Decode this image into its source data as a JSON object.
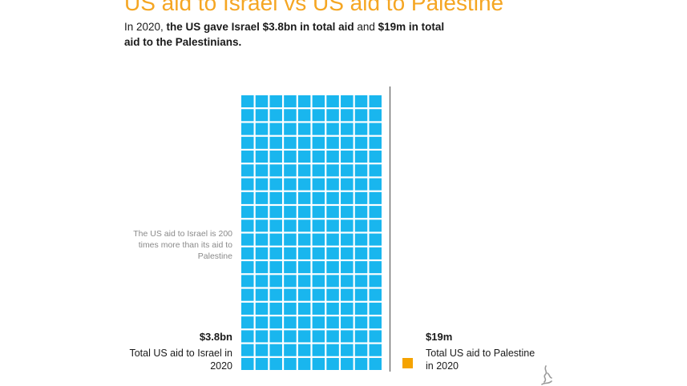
{
  "title": "US aid to Israel vs US aid to Palestine",
  "subtitle": {
    "prefix": "In 2020, ",
    "bold_1": "the US gave Israel $3.8bn in total aid",
    "joiner": " and ",
    "bold_2": "$19m in total aid to the Palestinians."
  },
  "note": "The US aid to Israel is 200 times more than its aid to Palestine",
  "colors": {
    "title": "#f5a623",
    "israel": "#19b6ee",
    "palestine": "#f5a300",
    "divider": "#4a4a4a",
    "note": "#8a8a8a",
    "text": "#1a1a1a"
  },
  "icons": {
    "brand_logo": "calligraphy-logo-icon"
  },
  "chart_data": {
    "type": "waffle",
    "unit_value_usd_m": 19,
    "series": [
      {
        "amount_label": "$3.8bn",
        "label": "Total US aid to Israel in 2020",
        "value_usd_m": 3800,
        "squares": 200,
        "grid_columns": 10,
        "grid_rows": 20
      },
      {
        "amount_label": "$19m",
        "label": "Total US aid to Palestine in 2020",
        "value_usd_m": 19,
        "squares": 1
      }
    ]
  }
}
